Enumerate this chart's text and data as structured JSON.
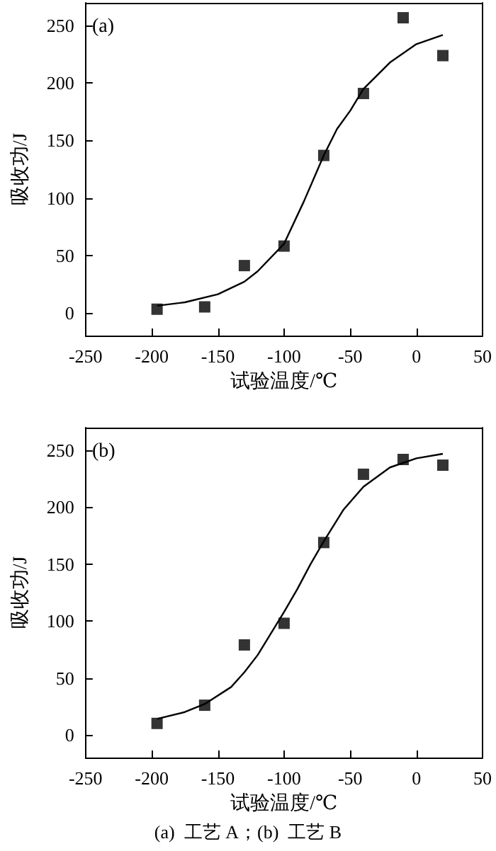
{
  "chart_data": [
    {
      "type": "scatter",
      "title": "(a)",
      "xlabel": "试验温度/℃",
      "ylabel": "吸收功/J",
      "xlim": [
        -250,
        50
      ],
      "xticks": [
        -250,
        -200,
        -150,
        -100,
        -50,
        0,
        50
      ],
      "ylim": [
        -20,
        270
      ],
      "yticks": [
        0,
        50,
        100,
        150,
        200,
        250
      ],
      "grid": false,
      "series": [
        {
          "marker": "square",
          "color": "#000000",
          "x": [
            -196,
            -160,
            -130,
            -100,
            -70,
            -40,
            -10,
            20
          ],
          "values": [
            3,
            5,
            41,
            58,
            137,
            191,
            257,
            224
          ]
        },
        {
          "type": "line",
          "marker": "none",
          "color": "#000000",
          "x": [
            -196,
            -175,
            -150,
            -130,
            -120,
            -100,
            -85,
            -70,
            -60,
            -50,
            -40,
            -20,
            0,
            20
          ],
          "values": [
            6,
            9,
            16,
            27,
            36,
            60,
            97,
            137,
            160,
            176,
            195,
            218,
            234,
            242
          ]
        }
      ]
    },
    {
      "type": "scatter",
      "title": "(b)",
      "xlabel": "试验温度/℃",
      "ylabel": "吸收功/J",
      "xlim": [
        -250,
        50
      ],
      "xticks": [
        -250,
        -200,
        -150,
        -100,
        -50,
        0,
        50
      ],
      "ylim": [
        -20,
        270
      ],
      "yticks": [
        0,
        50,
        100,
        150,
        200,
        250
      ],
      "grid": false,
      "annotations": [
        "(a)  工艺 A；(b)  工艺 B"
      ],
      "series": [
        {
          "marker": "square",
          "color": "#000000",
          "x": [
            -196,
            -160,
            -130,
            -100,
            -70,
            -40,
            -10,
            20
          ],
          "values": [
            10,
            26,
            79,
            98,
            169,
            229,
            242,
            237
          ]
        },
        {
          "type": "line",
          "marker": "none",
          "color": "#000000",
          "x": [
            -196,
            -175,
            -160,
            -140,
            -130,
            -120,
            -100,
            -90,
            -80,
            -70,
            -55,
            -40,
            -20,
            0,
            20
          ],
          "values": [
            14,
            20,
            27,
            42,
            55,
            70,
            108,
            128,
            150,
            170,
            198,
            218,
            235,
            243,
            247
          ]
        }
      ]
    }
  ]
}
